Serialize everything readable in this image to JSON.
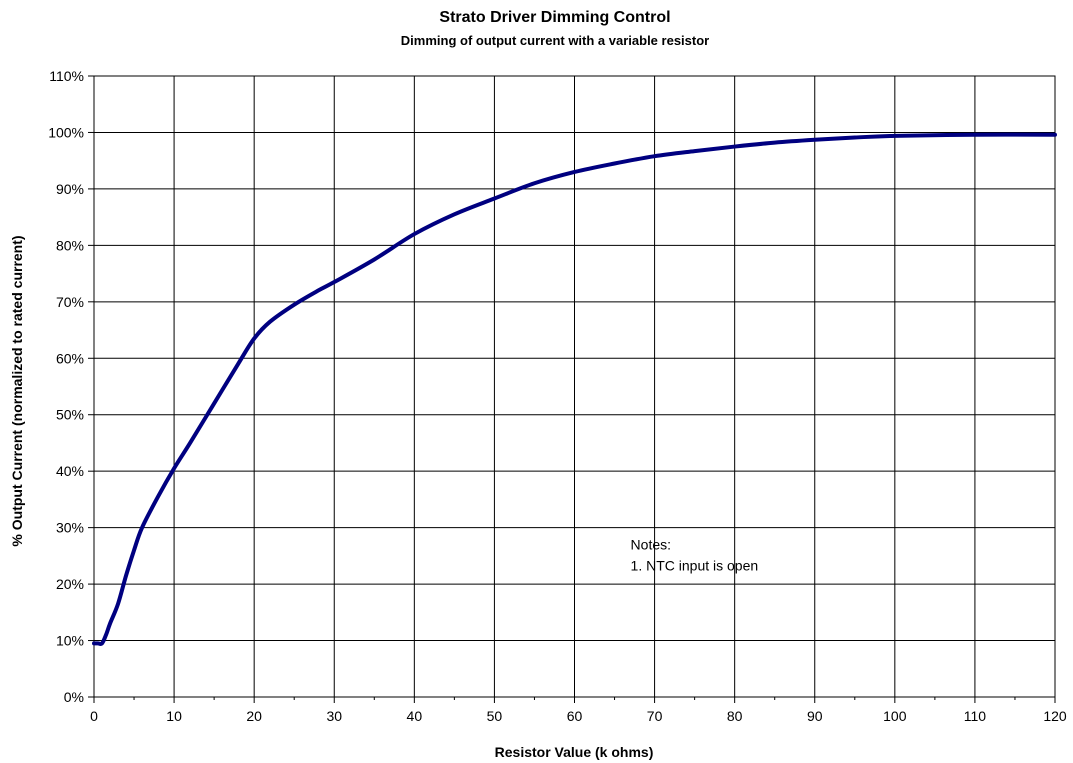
{
  "chart_data": {
    "type": "line",
    "title": "Strato Driver Dimming Control",
    "subtitle": "Dimming of output current with a variable resistor",
    "xlabel": "Resistor Value (k ohms)",
    "ylabel": "% Output Current (normalized to rated current)",
    "xlim": [
      0,
      120
    ],
    "ylim": [
      0,
      110
    ],
    "x_ticks": [
      0,
      10,
      20,
      30,
      40,
      50,
      60,
      70,
      80,
      90,
      100,
      110,
      120
    ],
    "x_tick_labels": [
      "0",
      "10",
      "20",
      "30",
      "40",
      "50",
      "60",
      "70",
      "80",
      "90",
      "100",
      "110",
      "120"
    ],
    "y_ticks": [
      0,
      10,
      20,
      30,
      40,
      50,
      60,
      70,
      80,
      90,
      100,
      110
    ],
    "y_tick_labels": [
      "0%",
      "10%",
      "20%",
      "30%",
      "40%",
      "50%",
      "60%",
      "70%",
      "80%",
      "90%",
      "100%",
      "110%"
    ],
    "grid": true,
    "line_color": "#000080",
    "series": [
      {
        "x": [
          0,
          0.5,
          1,
          1.5,
          2,
          3,
          4,
          5,
          6,
          8,
          10,
          12,
          15,
          18,
          20,
          22,
          25,
          28,
          30,
          35,
          40,
          45,
          50,
          55,
          60,
          65,
          70,
          75,
          80,
          85,
          90,
          95,
          100,
          110,
          120
        ],
        "y": [
          9.5,
          9.5,
          9.5,
          11,
          13,
          16.5,
          21.5,
          26,
          30,
          35.5,
          40.5,
          45,
          52,
          59,
          63.5,
          66.5,
          69.5,
          72,
          73.5,
          77.5,
          82,
          85.5,
          88.3,
          91,
          93,
          94.5,
          95.8,
          96.7,
          97.5,
          98.2,
          98.7,
          99.1,
          99.4,
          99.6,
          99.6
        ]
      }
    ],
    "annotation": {
      "lines": [
        "Notes:",
        "1. NTC input is open"
      ],
      "x": 67,
      "y": 30
    }
  }
}
